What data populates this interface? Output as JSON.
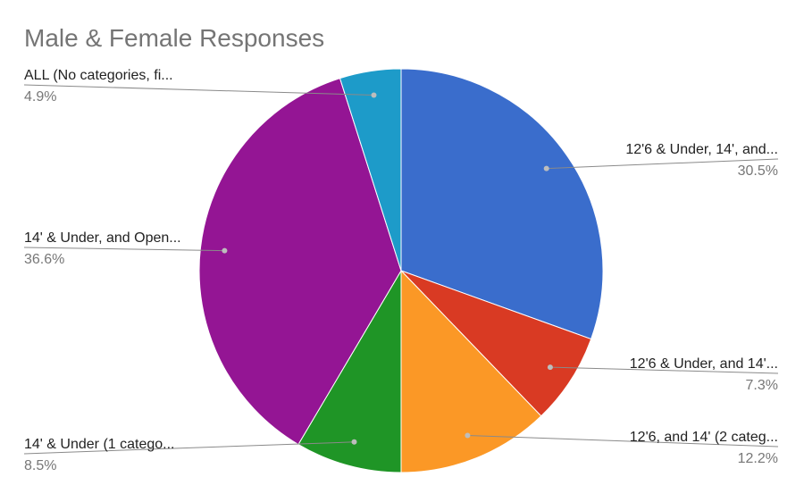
{
  "chart_data": {
    "type": "pie",
    "title": "Male & Female Responses",
    "slices": [
      {
        "label": "12'6 & Under, 14', and...",
        "value": 30.5,
        "value_label": "30.5%",
        "color": "#3a6dcc"
      },
      {
        "label": "12'6 & Under, and 14'...",
        "value": 7.3,
        "value_label": "7.3%",
        "color": "#d93a23"
      },
      {
        "label": "12'6, and 14' (2 categ...",
        "value": 12.2,
        "value_label": "12.2%",
        "color": "#fb9826"
      },
      {
        "label": "14' & Under (1 catego...",
        "value": 8.5,
        "value_label": "8.5%",
        "color": "#1f9526"
      },
      {
        "label": "14' & Under, and Open...",
        "value": 36.6,
        "value_label": "36.6%",
        "color": "#941594"
      },
      {
        "label": "ALL (No categories, fi...",
        "value": 4.9,
        "value_label": "4.9%",
        "color": "#1d9bc9"
      }
    ],
    "start_angle": "12 o'clock",
    "direction": "clockwise",
    "legend": "none",
    "labels": "outside with leader lines"
  }
}
